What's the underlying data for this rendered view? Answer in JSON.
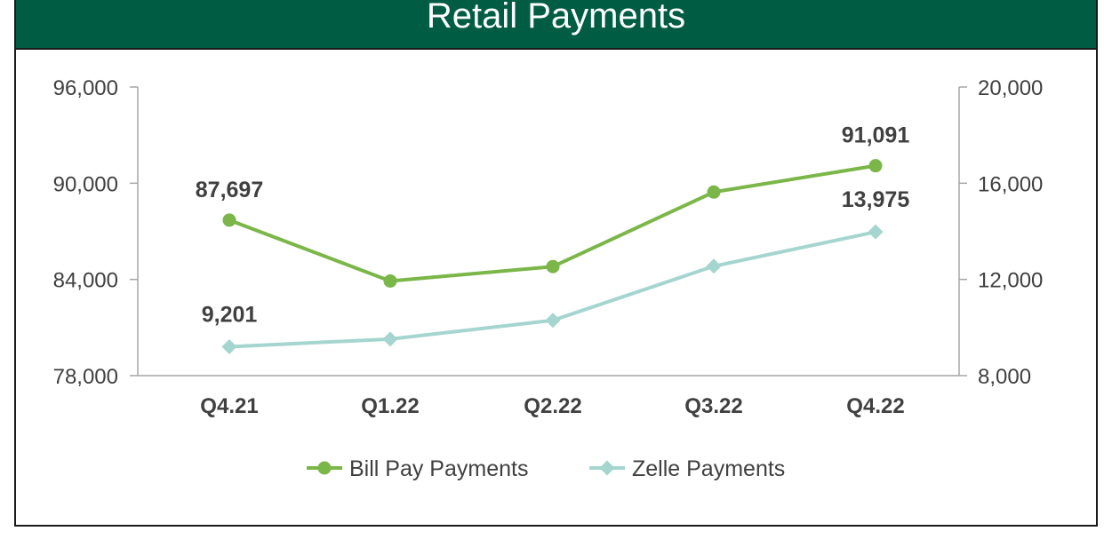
{
  "chart_data": {
    "type": "line",
    "title": "Retail Payments",
    "categories": [
      "Q4.21",
      "Q1.22",
      "Q2.22",
      "Q3.22",
      "Q4.22"
    ],
    "y_left": {
      "ylim": [
        78000,
        96000
      ],
      "ticks": [
        "78,000",
        "84,000",
        "90,000",
        "96,000"
      ],
      "tick_values": [
        78000,
        84000,
        90000,
        96000
      ]
    },
    "y_right": {
      "ylim": [
        8000,
        20000
      ],
      "ticks": [
        "8,000",
        "12,000",
        "16,000",
        "20,000"
      ],
      "tick_values": [
        8000,
        12000,
        16000,
        20000
      ]
    },
    "series": [
      {
        "name": "Bill Pay Payments",
        "axis": "left",
        "color": "#7ab648",
        "marker": "circle",
        "values": [
          87697,
          83900,
          84800,
          89450,
          91091
        ],
        "labels": [
          "87,697",
          "",
          "",
          "",
          "91,091"
        ]
      },
      {
        "name": "Zelle Payments",
        "axis": "right",
        "color": "#a5d5cf",
        "marker": "diamond",
        "values": [
          9201,
          9520,
          10300,
          12550,
          13975
        ],
        "labels": [
          "9,201",
          "",
          "",
          "",
          "13,975"
        ]
      }
    ],
    "legend_position": "bottom",
    "grid": false
  },
  "colors": {
    "banner": "#005c43",
    "axis": "#a6a6a6",
    "text": "#404040"
  }
}
